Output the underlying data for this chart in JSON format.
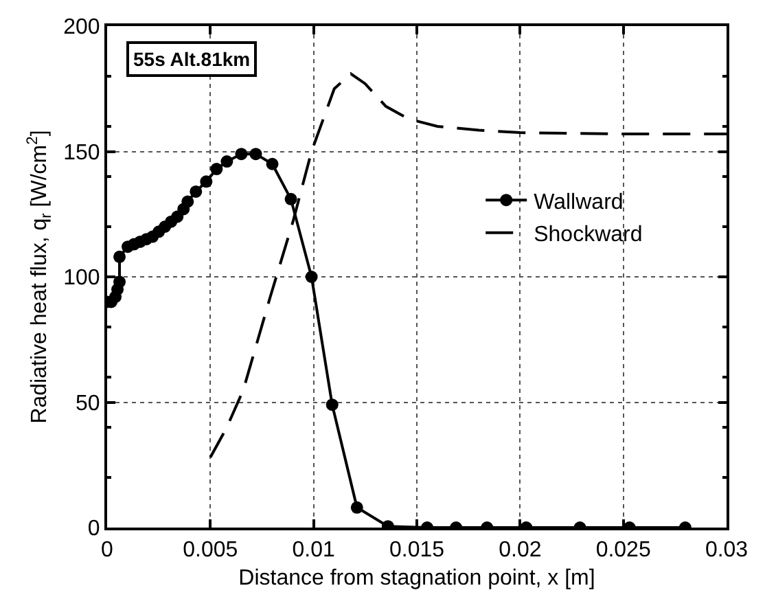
{
  "chart_data": {
    "type": "line",
    "xlabel": "Distance from stagnation point, x [m]",
    "ylabel": "Radiative heat flux, q$_{r}$ [W/cm$^{2}$]",
    "annotations": [
      "55s Alt.81km"
    ],
    "xlim": [
      0,
      0.03
    ],
    "xticks": [
      0,
      0.005,
      0.01,
      0.015,
      0.02,
      0.025,
      0.03
    ],
    "ylim": [
      0,
      200
    ],
    "yticks": [
      0,
      50,
      100,
      150,
      200
    ],
    "grid": true,
    "legend": "right",
    "series": [
      {
        "name": "Wallward",
        "color": "#000000",
        "marker": "circle",
        "line_style": "solid",
        "x": [
          0,
          0.0002,
          0.0004,
          0.0005,
          0.0006,
          0.0006,
          0.001,
          0.0013,
          0.0016,
          0.0019,
          0.0022,
          0.0025,
          0.0028,
          0.0031,
          0.0034,
          0.0037,
          0.0039,
          0.0043,
          0.0048,
          0.0053,
          0.0058,
          0.0065,
          0.0072,
          0.008,
          0.0089,
          0.0099,
          0.0109,
          0.0121,
          0.0136,
          0.0155,
          0.0169,
          0.0184,
          0.0203,
          0.0229,
          0.0253,
          0.028
        ],
        "values": [
          90,
          90,
          92,
          95,
          98,
          108,
          112,
          113,
          114,
          115,
          116,
          118,
          120,
          122,
          124,
          127,
          130,
          134,
          138,
          143,
          146,
          149,
          149,
          145,
          131,
          100,
          49,
          8,
          0.5,
          0,
          0,
          0,
          0,
          0,
          0,
          0
        ]
      },
      {
        "name": "Shockward",
        "color": "#000000",
        "marker": "none",
        "line_style": "dashed",
        "x": [
          0.005,
          0.0058,
          0.0066,
          0.0079,
          0.009,
          0.0099,
          0.011,
          0.0118,
          0.0125,
          0.0135,
          0.0146,
          0.016,
          0.018,
          0.02,
          0.025,
          0.03
        ],
        "values": [
          28,
          40,
          55,
          92,
          122,
          150,
          175,
          181,
          177,
          168,
          163,
          160,
          158.5,
          157.5,
          157,
          157
        ]
      }
    ]
  }
}
